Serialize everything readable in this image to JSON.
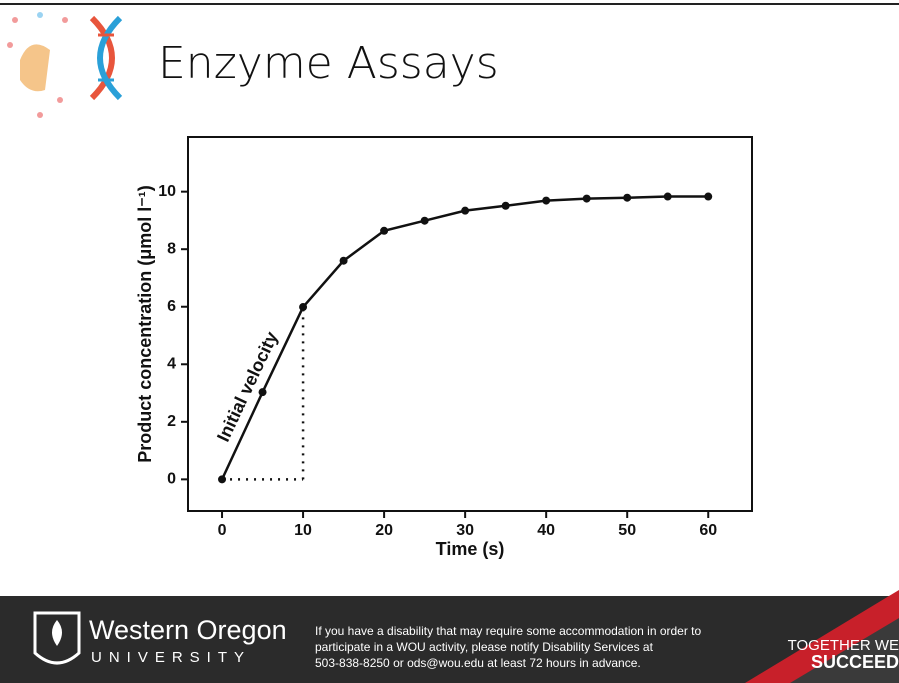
{
  "header": {
    "title": "Enzyme Assays"
  },
  "chart_data": {
    "type": "line",
    "x_label": "Time (s)",
    "y_label": "Product concentration (μmol l⁻¹)",
    "annotation": "Initial velocity",
    "x": [
      0,
      5,
      10,
      15,
      20,
      25,
      30,
      35,
      40,
      45,
      50,
      55,
      60
    ],
    "series": [
      {
        "color": "#111111",
        "values": [
          0,
          3.03,
          5.99,
          7.6,
          8.64,
          8.99,
          9.34,
          9.51,
          9.69,
          9.76,
          9.79,
          9.83,
          9.83
        ]
      }
    ],
    "xlim": [
      -4.2,
      65.4
    ],
    "ylim": [
      -1.1,
      11.9
    ],
    "xticks": [
      0,
      10,
      20,
      30,
      40,
      50,
      60
    ],
    "yticks": [
      0,
      2,
      4,
      6,
      8,
      10
    ]
  },
  "footer": {
    "university_name": "Western Oregon",
    "university_sub": "UNIVERSITY",
    "notice": [
      "If you have a disability that may require some accommodation in order to",
      "participate in a WOU activity, please notify Disability Services at",
      "503-838-8250 or ods@wou.edu at least 72 hours in advance."
    ],
    "slogan": [
      "TOGETHER WE",
      "SUCCEED"
    ]
  }
}
